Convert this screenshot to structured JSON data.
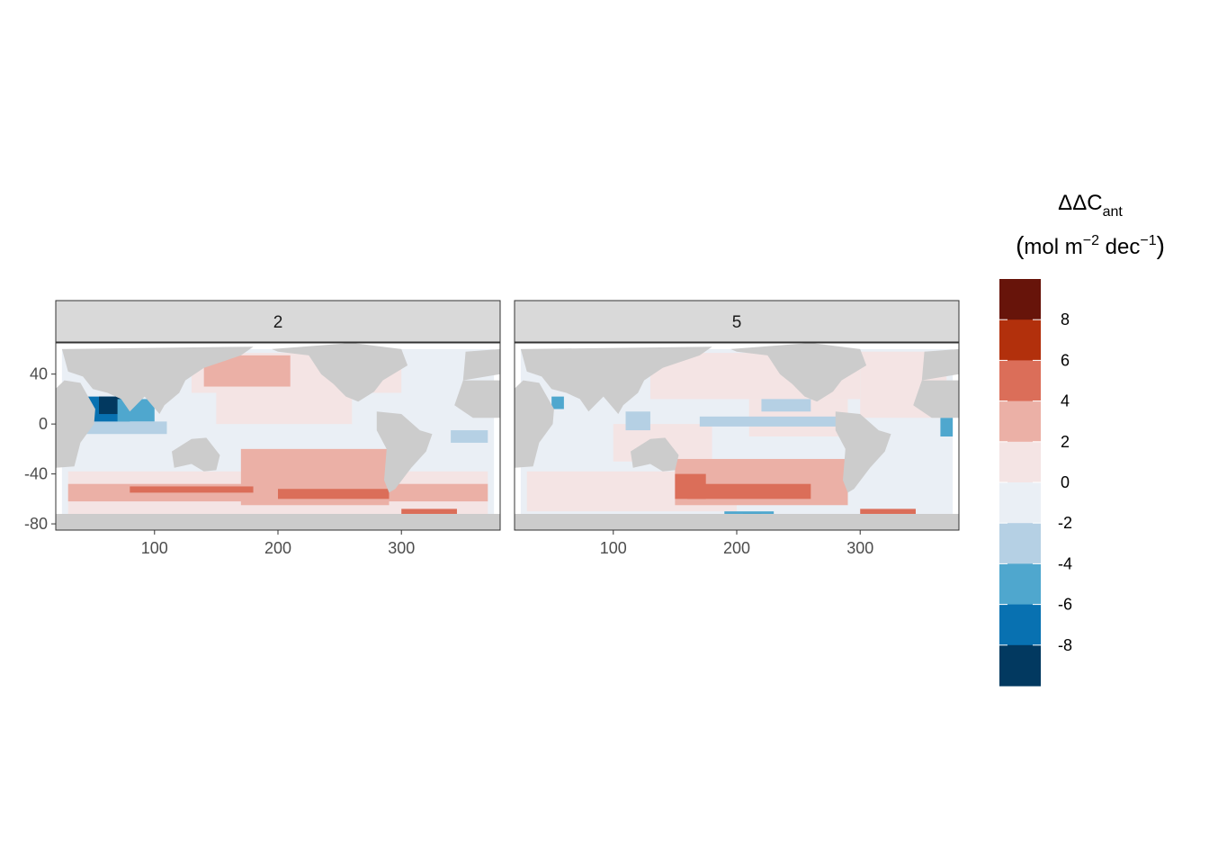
{
  "chart_data": {
    "type": "heatmap",
    "title": "",
    "xlabel": "",
    "ylabel": "",
    "xlim": [
      20,
      380
    ],
    "ylim": [
      -85,
      65
    ],
    "x_ticks": [
      100,
      200,
      300
    ],
    "y_ticks": [
      40,
      0,
      -40,
      -80
    ],
    "grid": false,
    "legend_position": "right",
    "panels": [
      {
        "label": "2",
        "regions": [
          {
            "lon": [
              25,
              375
            ],
            "lat": [
              -75,
              60
            ],
            "value": -1
          },
          {
            "lon": [
              30,
              370
            ],
            "lat": [
              -72,
              -38
            ],
            "value": 1
          },
          {
            "lon": [
              130,
              300
            ],
            "lat": [
              25,
              57
            ],
            "value": 1
          },
          {
            "lon": [
              150,
              260
            ],
            "lat": [
              0,
              40
            ],
            "value": 1
          },
          {
            "lon": [
              170,
              290
            ],
            "lat": [
              -65,
              -20
            ],
            "value": 3
          },
          {
            "lon": [
              140,
              210
            ],
            "lat": [
              30,
              55
            ],
            "value": 3
          },
          {
            "lon": [
              30,
              370
            ],
            "lat": [
              -62,
              -48
            ],
            "value": 3
          },
          {
            "lon": [
              200,
              290
            ],
            "lat": [
              -60,
              -52
            ],
            "value": 5
          },
          {
            "lon": [
              80,
              180
            ],
            "lat": [
              -55,
              -50
            ],
            "value": 5
          },
          {
            "lon": [
              45,
              80
            ],
            "lat": [
              0,
              22
            ],
            "value": -7
          },
          {
            "lon": [
              55,
              72
            ],
            "lat": [
              8,
              22
            ],
            "value": -9
          },
          {
            "lon": [
              70,
              100
            ],
            "lat": [
              2,
              20
            ],
            "value": -5
          },
          {
            "lon": [
              42,
              110
            ],
            "lat": [
              -8,
              2
            ],
            "value": -3
          },
          {
            "lon": [
              340,
              370
            ],
            "lat": [
              -15,
              -5
            ],
            "value": -3
          },
          {
            "lon": [
              300,
              345
            ],
            "lat": [
              -75,
              -68
            ],
            "value": 5
          },
          {
            "lon": [
              305,
              325
            ],
            "lat": [
              -77,
              -73
            ],
            "value": 9
          }
        ]
      },
      {
        "label": "5",
        "regions": [
          {
            "lon": [
              25,
              375
            ],
            "lat": [
              -75,
              60
            ],
            "value": -1
          },
          {
            "lon": [
              30,
              200
            ],
            "lat": [
              -70,
              -38
            ],
            "value": 1
          },
          {
            "lon": [
              130,
              300
            ],
            "lat": [
              20,
              57
            ],
            "value": 1
          },
          {
            "lon": [
              100,
              180
            ],
            "lat": [
              -30,
              0
            ],
            "value": 1
          },
          {
            "lon": [
              300,
              370
            ],
            "lat": [
              5,
              58
            ],
            "value": 1
          },
          {
            "lon": [
              210,
              290
            ],
            "lat": [
              -10,
              20
            ],
            "value": 1
          },
          {
            "lon": [
              150,
              290
            ],
            "lat": [
              -65,
              -28
            ],
            "value": 3
          },
          {
            "lon": [
              160,
              260
            ],
            "lat": [
              -60,
              -48
            ],
            "value": 5
          },
          {
            "lon": [
              150,
              175
            ],
            "lat": [
              -60,
              -40
            ],
            "value": 5
          },
          {
            "lon": [
              170,
              300
            ],
            "lat": [
              -2,
              6
            ],
            "value": -3
          },
          {
            "lon": [
              220,
              260
            ],
            "lat": [
              10,
              20
            ],
            "value": -3
          },
          {
            "lon": [
              190,
              230
            ],
            "lat": [
              -78,
              -70
            ],
            "value": -5
          },
          {
            "lon": [
              205,
              220
            ],
            "lat": [
              -76,
              -72
            ],
            "value": -9
          },
          {
            "lon": [
              50,
              60
            ],
            "lat": [
              12,
              22
            ],
            "value": -5
          },
          {
            "lon": [
              110,
              130
            ],
            "lat": [
              -5,
              10
            ],
            "value": -3
          },
          {
            "lon": [
              365,
              375
            ],
            "lat": [
              -10,
              5
            ],
            "value": -5
          },
          {
            "lon": [
              270,
              290
            ],
            "lat": [
              52,
              58
            ],
            "value": -7
          },
          {
            "lon": [
              300,
              345
            ],
            "lat": [
              -78,
              -68
            ],
            "value": 5
          }
        ]
      }
    ],
    "legend": {
      "title_main": "ΔΔC",
      "title_sub": "ant",
      "title_unit_open": "(",
      "title_unit_mol": "mol m",
      "title_unit_exp1": "−2",
      "title_unit_dec": " dec",
      "title_unit_exp2": "−1",
      "title_unit_close": ")",
      "breaks": [
        -10,
        -8,
        -6,
        -4,
        -2,
        0,
        2,
        4,
        6,
        8,
        10
      ],
      "labels": [
        "8",
        "6",
        "4",
        "2",
        "0",
        "-2",
        "-4",
        "-6",
        "-8"
      ],
      "colors_top_to_bottom": [
        "#67140a",
        "#b2300c",
        "#db6e59",
        "#ebb0a6",
        "#f4e4e4",
        "#eaeff5",
        "#b5d0e4",
        "#4fa7ce",
        "#0871b1",
        "#023960"
      ]
    },
    "land_color": "#cccccc",
    "ocean_base_color": "#eaeff5"
  }
}
